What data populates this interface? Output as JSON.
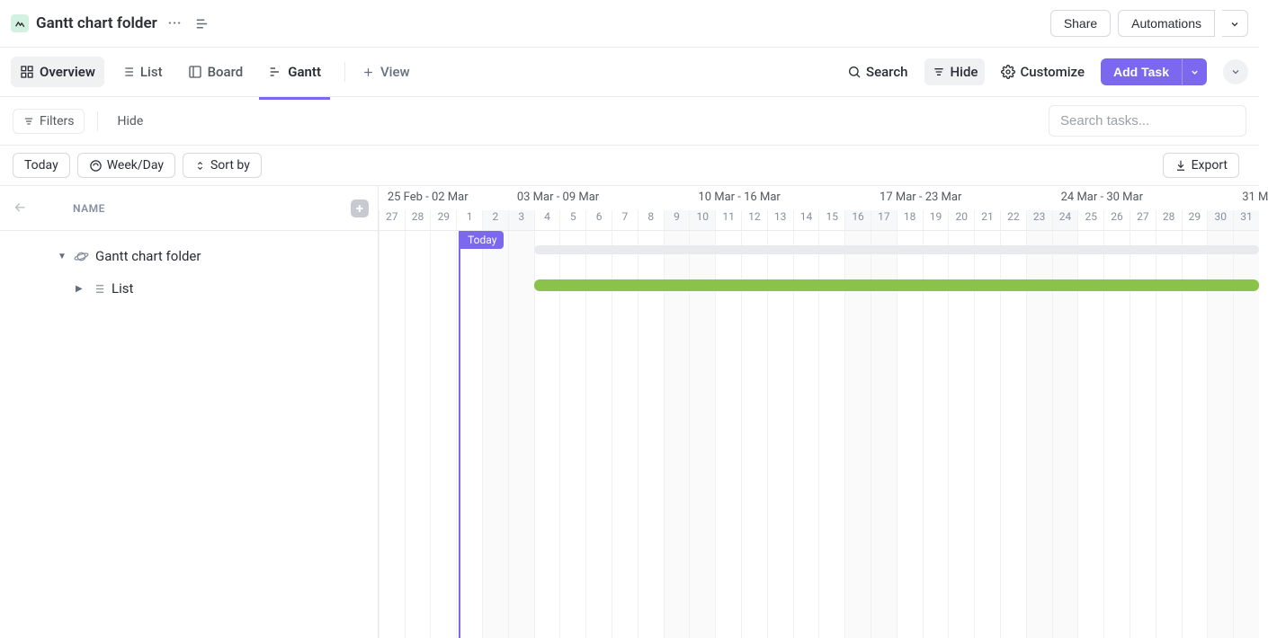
{
  "header": {
    "title": "Gantt chart folder",
    "share": "Share",
    "automations": "Automations"
  },
  "tabs": {
    "overview": "Overview",
    "list": "List",
    "board": "Board",
    "gantt": "Gantt",
    "addview": "View"
  },
  "tabtools": {
    "search": "Search",
    "hide": "Hide",
    "customize": "Customize",
    "addtask": "Add Task"
  },
  "toolbar": {
    "filters": "Filters",
    "hide": "Hide",
    "search_placeholder": "Search tasks..."
  },
  "subtoolbar": {
    "today": "Today",
    "weekday": "Week/Day",
    "sortby": "Sort by",
    "export": "Export"
  },
  "sidebar": {
    "name_col": "NAME",
    "rows": [
      {
        "label": "Gantt chart folder"
      },
      {
        "label": "List"
      }
    ]
  },
  "timeline": {
    "day_width": 28.8,
    "weeks": [
      {
        "label": "25 Feb - 02 Mar",
        "span": 5
      },
      {
        "label": "03 Mar - 09 Mar",
        "span": 7
      },
      {
        "label": "10 Mar - 16 Mar",
        "span": 7
      },
      {
        "label": "17 Mar - 23 Mar",
        "span": 7
      },
      {
        "label": "24 Mar - 30 Mar",
        "span": 7
      },
      {
        "label": "31 M",
        "span": 1
      }
    ],
    "days": [
      {
        "n": "27",
        "weekend": false
      },
      {
        "n": "28",
        "weekend": false
      },
      {
        "n": "29",
        "weekend": false
      },
      {
        "n": "1",
        "weekend": false
      },
      {
        "n": "2",
        "weekend": true
      },
      {
        "n": "3",
        "weekend": true
      },
      {
        "n": "4",
        "weekend": false
      },
      {
        "n": "5",
        "weekend": false
      },
      {
        "n": "6",
        "weekend": false
      },
      {
        "n": "7",
        "weekend": false
      },
      {
        "n": "8",
        "weekend": false
      },
      {
        "n": "9",
        "weekend": true
      },
      {
        "n": "10",
        "weekend": true
      },
      {
        "n": "11",
        "weekend": false
      },
      {
        "n": "12",
        "weekend": false
      },
      {
        "n": "13",
        "weekend": false
      },
      {
        "n": "14",
        "weekend": false
      },
      {
        "n": "15",
        "weekend": false
      },
      {
        "n": "16",
        "weekend": true
      },
      {
        "n": "17",
        "weekend": true
      },
      {
        "n": "18",
        "weekend": false
      },
      {
        "n": "19",
        "weekend": false
      },
      {
        "n": "20",
        "weekend": false
      },
      {
        "n": "21",
        "weekend": false
      },
      {
        "n": "22",
        "weekend": false
      },
      {
        "n": "23",
        "weekend": true
      },
      {
        "n": "24",
        "weekend": true
      },
      {
        "n": "25",
        "weekend": false
      },
      {
        "n": "26",
        "weekend": false
      },
      {
        "n": "27",
        "weekend": false
      },
      {
        "n": "28",
        "weekend": false
      },
      {
        "n": "29",
        "weekend": false
      },
      {
        "n": "30",
        "weekend": true
      },
      {
        "n": "31",
        "weekend": true
      }
    ],
    "today_index": 3.1,
    "today_label": "Today",
    "bars": [
      {
        "type": "folder",
        "start": 6,
        "end": 34
      },
      {
        "type": "task",
        "start": 6,
        "end": 34
      }
    ],
    "colors": {
      "accent": "#7b68ee",
      "task_bar": "#8bc34a",
      "folder_bar": "#e8eaed"
    }
  }
}
